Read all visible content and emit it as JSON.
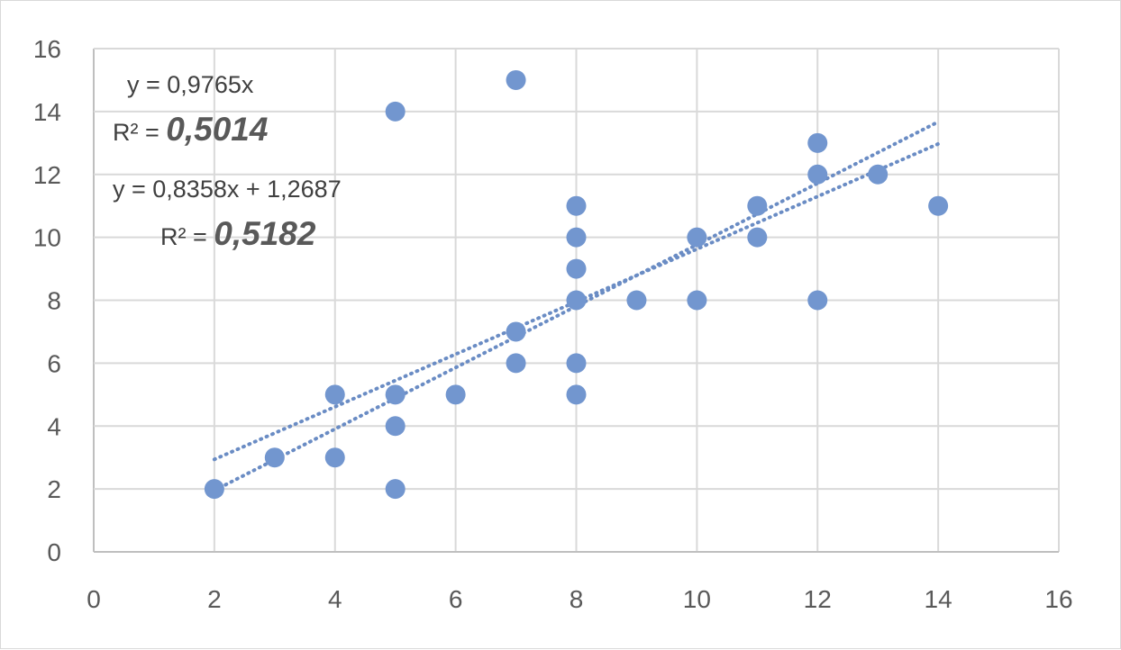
{
  "chart_data": {
    "type": "scatter",
    "title": "",
    "xlabel": "",
    "ylabel": "",
    "xlim": [
      0,
      16
    ],
    "ylim": [
      0,
      16
    ],
    "x_ticks": [
      "0",
      "2",
      "4",
      "6",
      "8",
      "10",
      "12",
      "14",
      "16"
    ],
    "y_ticks": [
      "0",
      "2",
      "4",
      "6",
      "8",
      "10",
      "12",
      "14",
      "16"
    ],
    "grid": true,
    "legend": "none",
    "marker_color": "#7296cf",
    "trendline_color": "#6a8cc4",
    "series": [
      {
        "points": [
          [
            2,
            2
          ],
          [
            3,
            3
          ],
          [
            4,
            3
          ],
          [
            4,
            5
          ],
          [
            5,
            2
          ],
          [
            5,
            4
          ],
          [
            5,
            5
          ],
          [
            5,
            14
          ],
          [
            6,
            5
          ],
          [
            7,
            6
          ],
          [
            7,
            7
          ],
          [
            7,
            15
          ],
          [
            8,
            5
          ],
          [
            8,
            6
          ],
          [
            8,
            8
          ],
          [
            8,
            9
          ],
          [
            8,
            10
          ],
          [
            8,
            11
          ],
          [
            9,
            8
          ],
          [
            10,
            8
          ],
          [
            10,
            10
          ],
          [
            11,
            10
          ],
          [
            11,
            11
          ],
          [
            12,
            8
          ],
          [
            12,
            12
          ],
          [
            12,
            13
          ],
          [
            13,
            12
          ],
          [
            14,
            11
          ]
        ]
      }
    ],
    "trendlines": [
      {
        "slope": 0.9765,
        "intercept": 0,
        "x_range": [
          2,
          14
        ]
      },
      {
        "slope": 0.8358,
        "intercept": 1.2687,
        "x_range": [
          2,
          14
        ]
      }
    ],
    "annotations": {
      "eq1": "y = 0,9765x",
      "r2_1_prefix": "R² = ",
      "r2_1_value": "0,5014",
      "eq2": "y = 0,8358x + 1,2687",
      "r2_2_prefix": "R² = ",
      "r2_2_value": "0,5182"
    }
  }
}
